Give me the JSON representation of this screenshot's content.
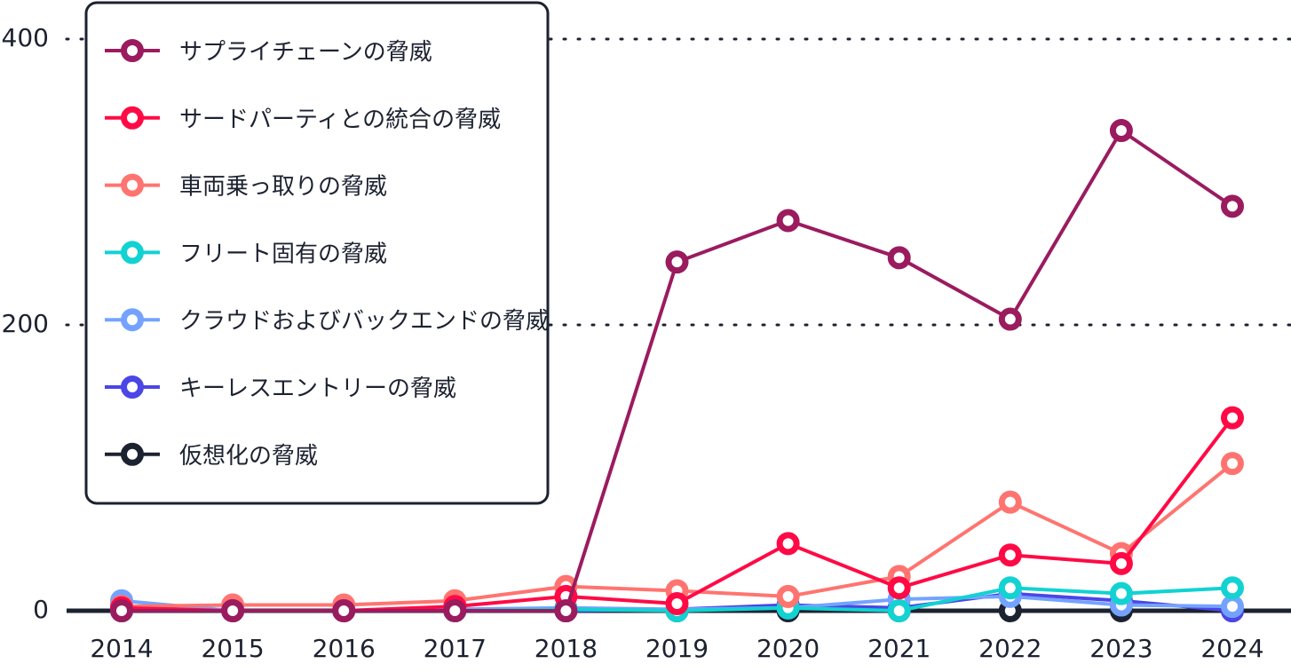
{
  "chart_data": {
    "type": "line",
    "title": "",
    "xlabel": "",
    "ylabel": "",
    "ylim": [
      0,
      400
    ],
    "yticks": [
      "0",
      "200",
      "400"
    ],
    "grid": "horizontal dotted",
    "legend_placement": "top-left",
    "categories": [
      "2014",
      "2015",
      "2016",
      "2017",
      "2018",
      "2019",
      "2020",
      "2021",
      "2022",
      "2023",
      "2024"
    ],
    "series": [
      {
        "name": "仮想化の脅威",
        "color": "#1c2230",
        "values": [
          3,
          0,
          0,
          1,
          0,
          0,
          0,
          0,
          0,
          0,
          0
        ]
      },
      {
        "name": "キーレスエントリーの脅威",
        "color": "#4b46e6",
        "values": [
          0,
          0,
          0,
          0,
          0,
          1,
          4,
          2,
          12,
          7,
          0
        ]
      },
      {
        "name": "クラウドおよびバックエンドの脅威",
        "color": "#74a3ff",
        "values": [
          7,
          0,
          0,
          1,
          2,
          1,
          2,
          8,
          10,
          4,
          3
        ]
      },
      {
        "name": "フリート固有の脅威",
        "color": "#12d2d2",
        "values": [
          0,
          0,
          0,
          0,
          1,
          0,
          2,
          0,
          16,
          12,
          16
        ]
      },
      {
        "name": "車両乗っ取りの脅威",
        "color": "#ff7470",
        "values": [
          3,
          4,
          4,
          7,
          17,
          14,
          10,
          24,
          76,
          40,
          103
        ]
      },
      {
        "name": "サードパーティとの統合の脅威",
        "color": "#ff0a45",
        "values": [
          2,
          0,
          0,
          3,
          10,
          5,
          47,
          16,
          39,
          33,
          135
        ]
      },
      {
        "name": "サプライチェーンの脅威",
        "color": "#9b1b5f",
        "values": [
          0,
          0,
          0,
          0,
          0,
          244,
          273,
          247,
          204,
          336,
          283
        ]
      }
    ],
    "legend_order": [
      "サプライチェーンの脅威",
      "サードパーティとの統合の脅威",
      "車両乗っ取りの脅威",
      "フリート固有の脅威",
      "クラウドおよびバックエンドの脅威",
      "キーレスエントリーの脅威",
      "仮想化の脅威"
    ]
  }
}
